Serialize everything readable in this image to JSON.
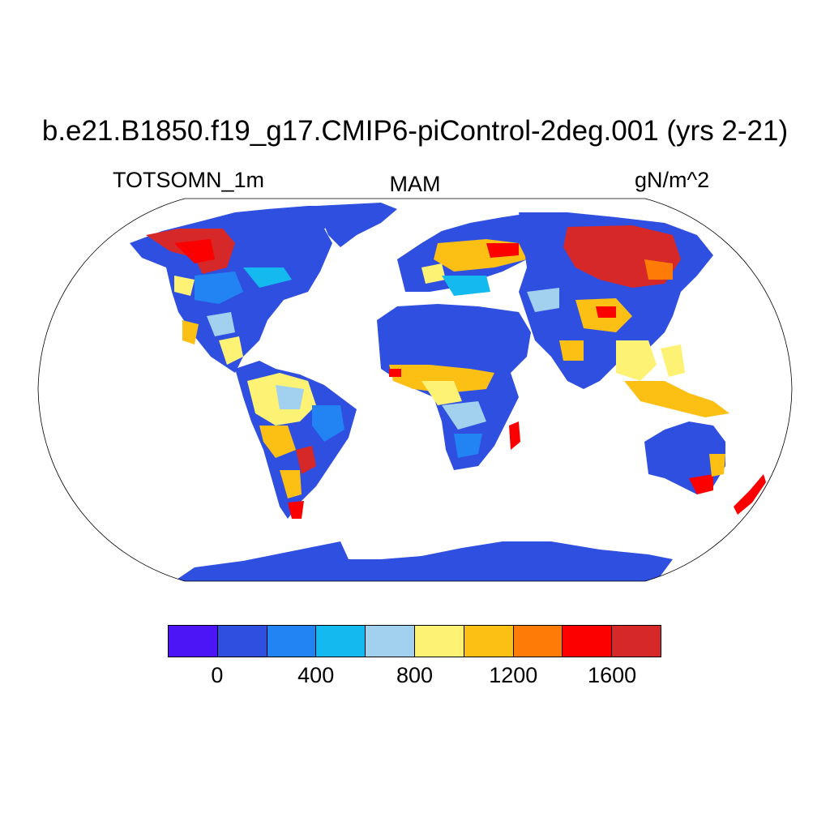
{
  "title": "b.e21.B1850.f19_g17.CMIP6-piControl-2deg.001 (yrs 2-21)",
  "left_label": "TOTSOMN_1m",
  "center_label": "MAM",
  "right_label": "gN/m^2",
  "colors": {
    "ocean": "#ffffff",
    "coastline": "#000000",
    "levels": [
      "#4b15f5",
      "#2e4fe0",
      "#2184f2",
      "#14b9f0",
      "#a2d1f0",
      "#fdf274",
      "#fcc015",
      "#fd7b06",
      "#fc0000",
      "#d62828"
    ]
  },
  "colorbar": {
    "tick_labels": [
      "0",
      "400",
      "800",
      "1200",
      "1600"
    ]
  },
  "map": {
    "projection": "Robinson",
    "variable_range": [
      0,
      1800
    ],
    "regions": [
      {
        "name": "Antarctica",
        "level": 1
      },
      {
        "name": "Africa",
        "level": 1
      },
      {
        "name": "Canada/Alaska",
        "level": 9
      },
      {
        "name": "Siberia",
        "level": 9
      }
    ]
  }
}
